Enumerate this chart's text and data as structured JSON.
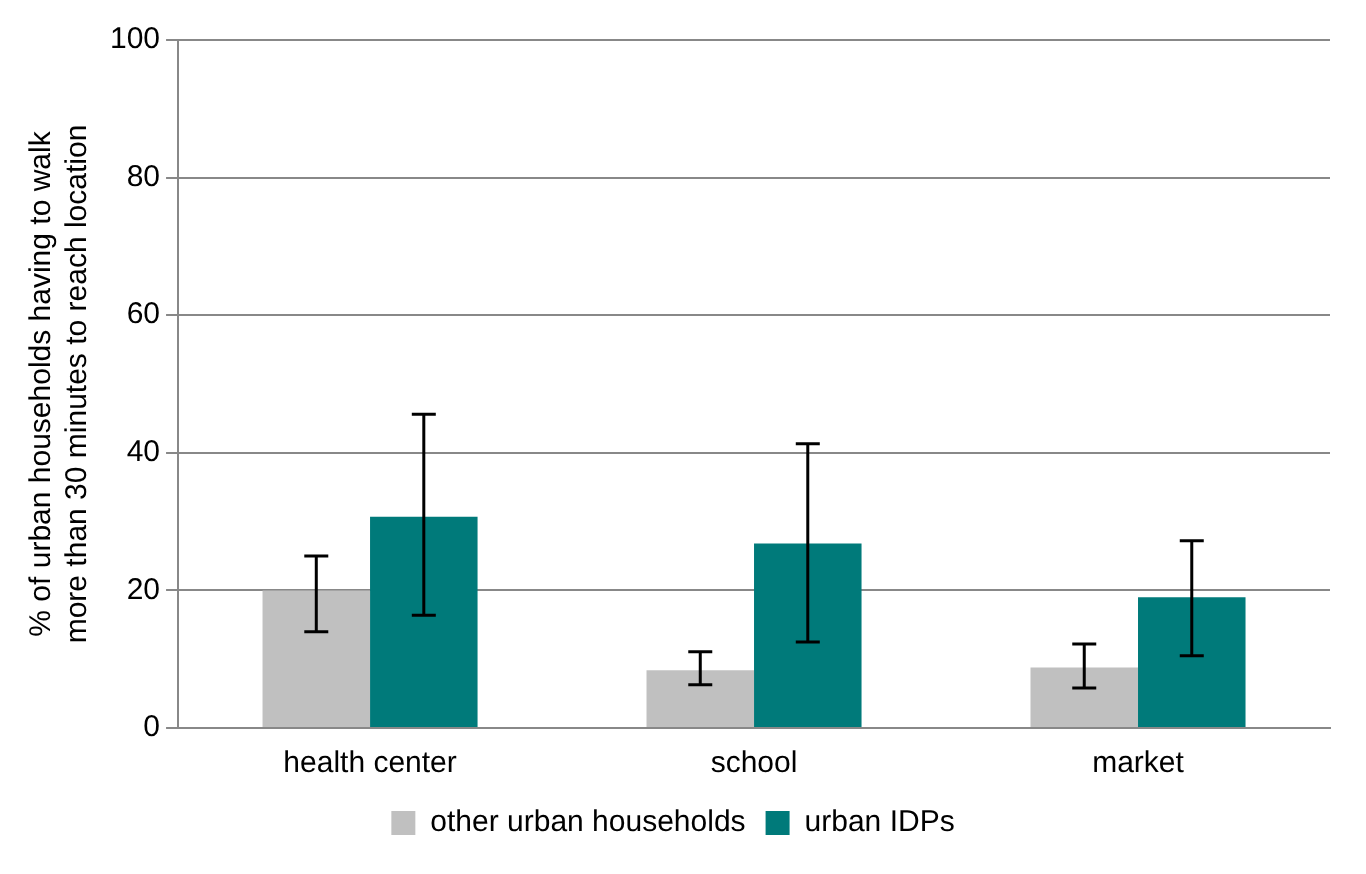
{
  "chart_data": {
    "type": "bar",
    "ylabel": "% of urban households having to walk\nmore than 30 minutes to reach location",
    "categories": [
      "health center",
      "school",
      "market"
    ],
    "series": [
      {
        "name": "other urban households",
        "color": "#c0c0c0",
        "values": [
          20,
          8.4,
          8.8
        ],
        "errors": [
          [
            14,
            25
          ],
          [
            6.3,
            11.1
          ],
          [
            5.8,
            12.2
          ]
        ]
      },
      {
        "name": "urban IDPs",
        "color": "#007a7a",
        "values": [
          30.7,
          26.8,
          19
        ],
        "errors": [
          [
            16.4,
            45.6
          ],
          [
            12.5,
            41.3
          ],
          [
            10.5,
            27.2
          ]
        ]
      }
    ],
    "ylim": [
      0,
      100
    ],
    "yticks": [
      0,
      20,
      40,
      60,
      80,
      100
    ],
    "grid": "y",
    "legend": "bottom"
  }
}
